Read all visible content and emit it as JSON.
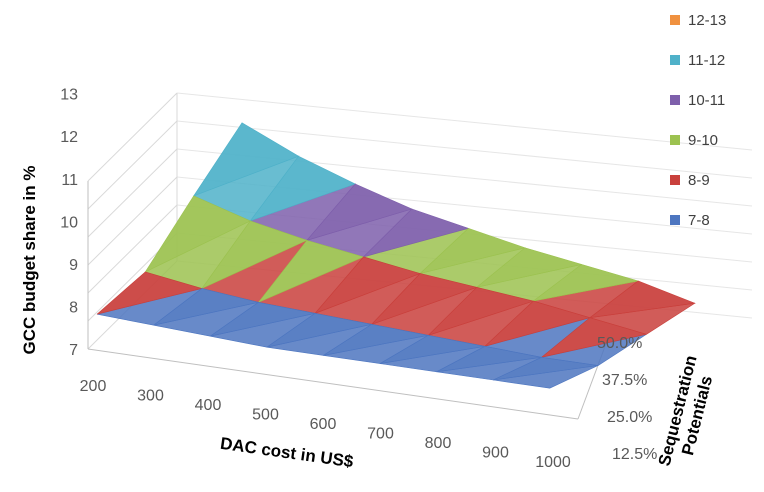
{
  "chart_data": {
    "type": "surface",
    "xlabel": "DAC cost in US$",
    "ylabel": "GCC budget share in %",
    "zlabel_lines": [
      "Sequestration",
      "Potentials"
    ],
    "x_ticks": [
      "200",
      "300",
      "400",
      "500",
      "600",
      "700",
      "800",
      "900",
      "1000"
    ],
    "depth_ticks": [
      "12.5%",
      "25.0%",
      "37.5%",
      "50.0%"
    ],
    "y_ticks": [
      "7",
      "8",
      "9",
      "10",
      "11",
      "12",
      "13"
    ],
    "ylim": [
      7,
      13
    ],
    "x": [
      200,
      300,
      400,
      500,
      600,
      700,
      800,
      900,
      1000
    ],
    "sequestration_potentials": [
      "12.5%",
      "25.0%",
      "37.5%",
      "50.0%"
    ],
    "values": [
      [
        7.6,
        7.5,
        7.4,
        7.3,
        7.3,
        7.3,
        7.3,
        7.3,
        7.3
      ],
      [
        8.6,
        8.3,
        8.1,
        8.0,
        7.9,
        7.8,
        7.7,
        7.6,
        7.6
      ],
      [
        10.8,
        10.2,
        9.8,
        9.5,
        9.2,
        9.0,
        8.8,
        8.5,
        8.2
      ],
      [
        12.9,
        12.0,
        11.3,
        10.7,
        10.3,
        9.9,
        9.6,
        9.3,
        8.8
      ]
    ],
    "legend": [
      {
        "label": "12-13",
        "color": "#f0913f"
      },
      {
        "label": "11-12",
        "color": "#4fb1c9"
      },
      {
        "label": "10-11",
        "color": "#7e5fab"
      },
      {
        "label": "9-10",
        "color": "#9cc250"
      },
      {
        "label": "8-9",
        "color": "#c9403c"
      },
      {
        "label": "7-8",
        "color": "#4d76c0"
      }
    ],
    "band_colors": {
      "7": "#4d76c0",
      "8": "#c9403c",
      "9": "#9cc250",
      "10": "#7e5fab",
      "11": "#4fb1c9",
      "12": "#f0913f"
    }
  }
}
